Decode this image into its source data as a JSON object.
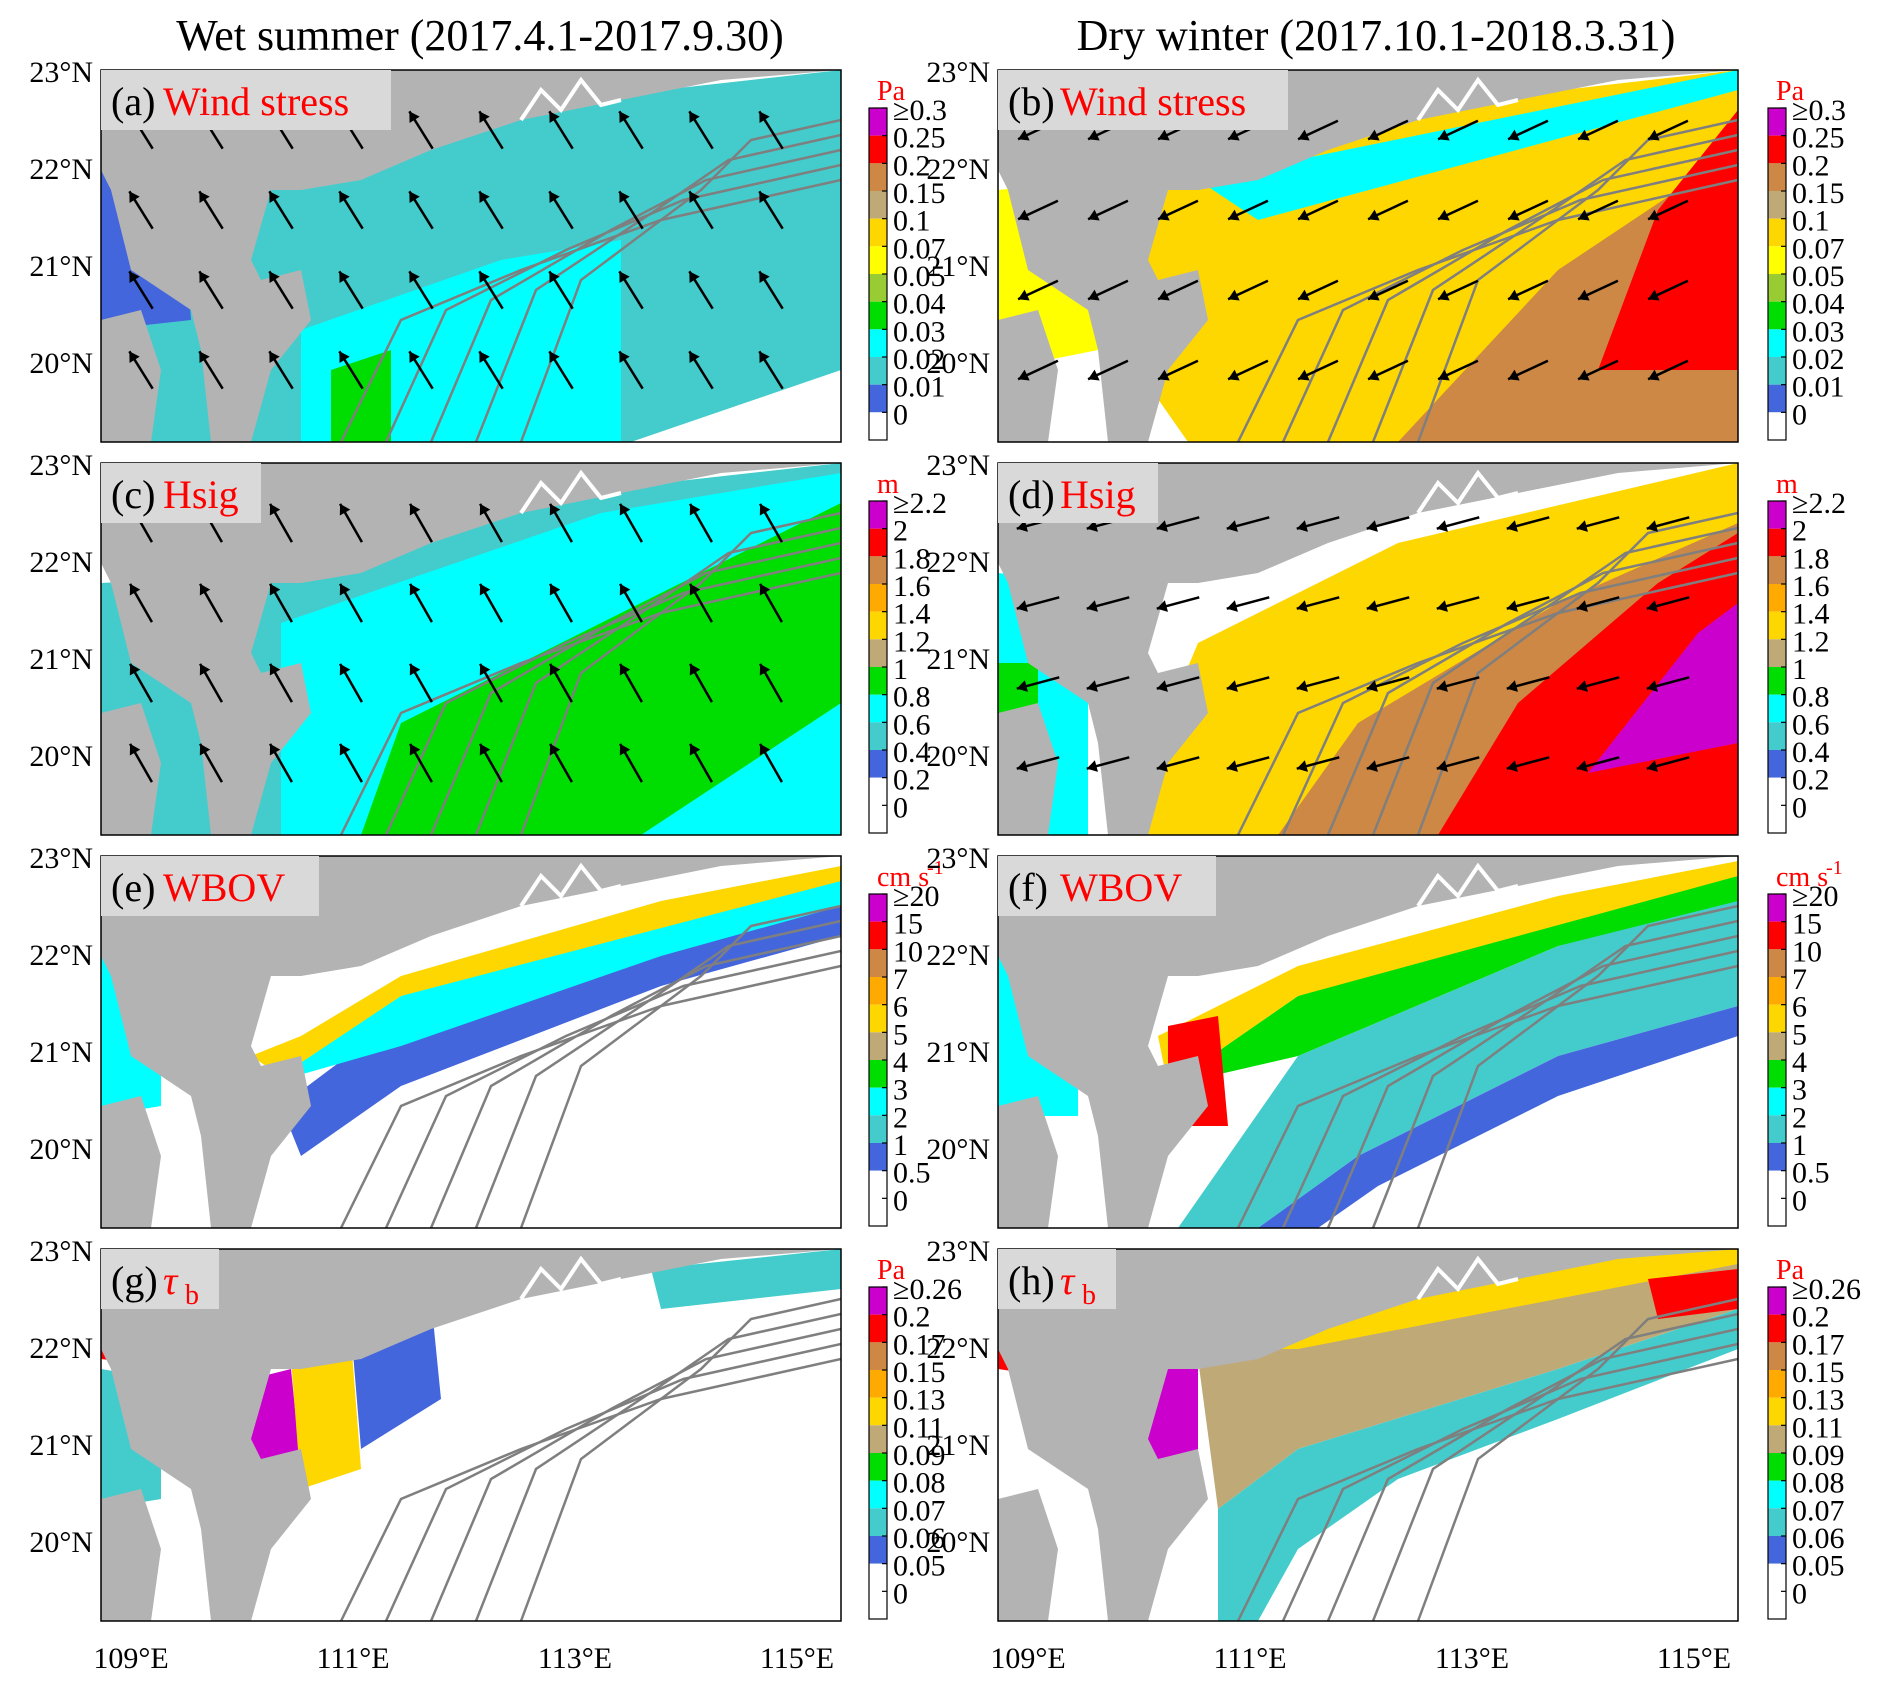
{
  "column_titles": [
    "Wet summer (2017.4.1-2017.9.30)",
    "Dry winter (2017.10.1-2018.3.31)"
  ],
  "lat_ticks": [
    "23°N",
    "22°N",
    "21°N",
    "20°N"
  ],
  "lon_ticks": [
    "109°E",
    "111°E",
    "113°E",
    "115°E"
  ],
  "colors": {
    "land": "#b3b3b3",
    "coast_white": "#ffffff",
    "contour": "#7f7f7f",
    "label_red": "#ff0000",
    "label_box": "#d9d9d9",
    "arrow": "#000000"
  },
  "rows": [
    {
      "unit": "Pa",
      "unit_sup": "",
      "ticks": [
        "≥0.3",
        "0.25",
        "0.2",
        "0.15",
        "0.1",
        "0.07",
        "0.05",
        "0.04",
        "0.03",
        "0.02",
        "0.01",
        "0"
      ],
      "colors": [
        "#cc00cc",
        "#ff0000",
        "#cc8844",
        "#bfaa77",
        "#ffd700",
        "#ffff00",
        "#99cc33",
        "#00dd00",
        "#00ffff",
        "#44cccc",
        "#4466dd",
        "#ffffff"
      ],
      "panels": [
        {
          "letter": "(a)",
          "name": "Wind stress",
          "sub": "",
          "italic": false
        },
        {
          "letter": "(b)",
          "name": "Wind stress",
          "sub": "",
          "italic": false
        }
      ]
    },
    {
      "unit": "m",
      "unit_sup": "",
      "ticks": [
        "≥2.2",
        "2",
        "1.8",
        "1.6",
        "1.4",
        "1.2",
        "1",
        "0.8",
        "0.6",
        "0.4",
        "0.2",
        "0"
      ],
      "colors": [
        "#cc00cc",
        "#ff0000",
        "#cc8844",
        "#ffaa00",
        "#ffd700",
        "#bfaa77",
        "#00dd00",
        "#00ffff",
        "#44cccc",
        "#4466dd",
        "#ffffff",
        "#ffffff"
      ],
      "panels": [
        {
          "letter": "(c)",
          "name": "Hsig",
          "sub": "",
          "italic": false
        },
        {
          "letter": "(d)",
          "name": "Hsig",
          "sub": "",
          "italic": false
        }
      ]
    },
    {
      "unit": "cm s",
      "unit_sup": "-1",
      "ticks": [
        "≥20",
        "15",
        "10",
        "7",
        "6",
        "5",
        "4",
        "3",
        "2",
        "1",
        "0.5",
        "0"
      ],
      "colors": [
        "#cc00cc",
        "#ff0000",
        "#cc8844",
        "#ffaa00",
        "#ffd700",
        "#bfaa77",
        "#00dd00",
        "#00ffff",
        "#44cccc",
        "#4466dd",
        "#ffffff",
        "#ffffff"
      ],
      "panels": [
        {
          "letter": "(e)",
          "name": "WBOV",
          "sub": "",
          "italic": false
        },
        {
          "letter": "(f)",
          "name": "WBOV",
          "sub": "",
          "italic": false
        }
      ]
    },
    {
      "unit": "Pa",
      "unit_sup": "",
      "ticks": [
        "≥0.26",
        "0.2",
        "0.17",
        "0.15",
        "0.13",
        "0.11",
        "0.09",
        "0.08",
        "0.07",
        "0.06",
        "0.05",
        "0"
      ],
      "colors": [
        "#cc00cc",
        "#ff0000",
        "#cc8844",
        "#ffaa00",
        "#ffd700",
        "#bfaa77",
        "#00dd00",
        "#00ffff",
        "#44cccc",
        "#4466dd",
        "#ffffff",
        "#ffffff"
      ],
      "panels": [
        {
          "letter": "(g)",
          "name": "τ",
          "sub": "b",
          "italic": true
        },
        {
          "letter": "(h)",
          "name": "τ",
          "sub": "b",
          "italic": true
        }
      ]
    }
  ]
}
